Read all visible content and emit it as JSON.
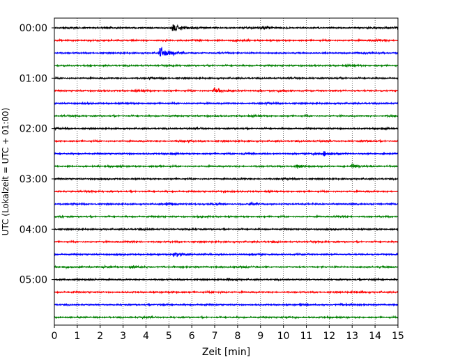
{
  "chart_data": {
    "type": "line",
    "title": "",
    "xlabel": "Zeit  [min]",
    "ylabel": "UTC (Lokalzeit = UTC + 01:00)",
    "xlim": [
      0,
      15
    ],
    "x_ticks": [
      "0",
      "1",
      "2",
      "3",
      "4",
      "5",
      "6",
      "7",
      "8",
      "9",
      "10",
      "11",
      "12",
      "13",
      "14",
      "15"
    ],
    "y_ticks": [
      "00:00",
      "01:00",
      "02:00",
      "03:00",
      "04:00",
      "05:00"
    ],
    "y_tick_trace_index": [
      0,
      4,
      8,
      12,
      16,
      20
    ],
    "grid": "vertical dotted",
    "trace_minutes": 15,
    "trace_count": 24,
    "colors": [
      "#000000",
      "#ff0000",
      "#0000ff",
      "#008000"
    ],
    "events": [
      {
        "trace": 0,
        "minute": 5.15,
        "amplitude": 1.0
      },
      {
        "trace": 0,
        "minute": 9.0,
        "amplitude": 0.35
      },
      {
        "trace": 2,
        "minute": 4.6,
        "amplitude": 1.1
      },
      {
        "trace": 5,
        "minute": 6.95,
        "amplitude": 0.55
      },
      {
        "trace": 10,
        "minute": 11.75,
        "amplitude": 0.5
      },
      {
        "trace": 10,
        "minute": 8.2,
        "amplitude": 0.25
      },
      {
        "trace": 11,
        "minute": 13.0,
        "amplitude": 0.6
      },
      {
        "trace": 11,
        "minute": 10.6,
        "amplitude": 0.3
      },
      {
        "trace": 14,
        "minute": 8.5,
        "amplitude": 0.3
      },
      {
        "trace": 14,
        "minute": 4.85,
        "amplitude": 0.3
      },
      {
        "trace": 18,
        "minute": 5.2,
        "amplitude": 0.7
      },
      {
        "trace": 19,
        "minute": 3.3,
        "amplitude": 0.3
      },
      {
        "trace": 22,
        "minute": 10.7,
        "amplitude": 0.25
      }
    ]
  }
}
